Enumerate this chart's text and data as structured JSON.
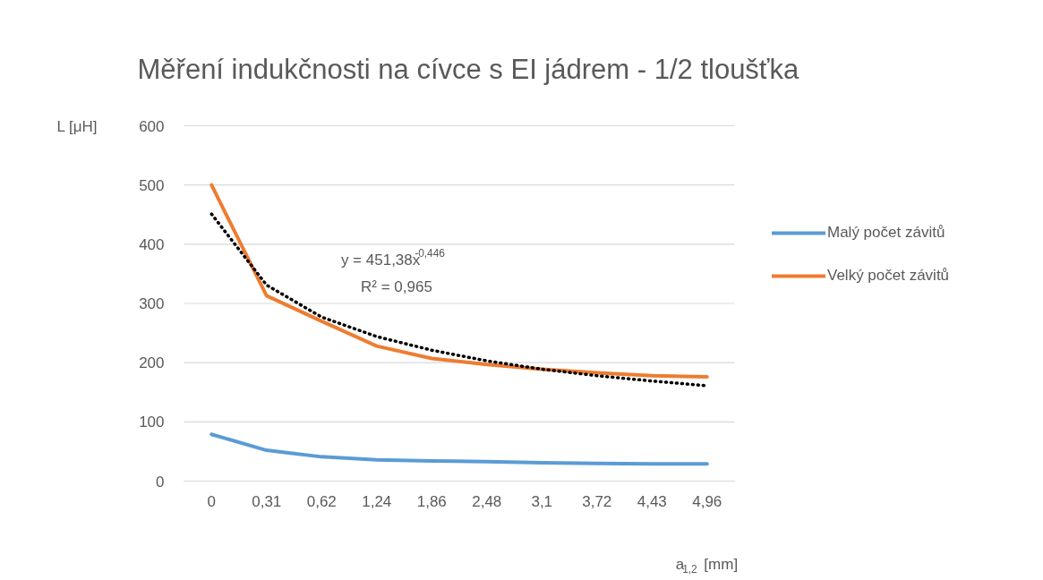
{
  "chart_data": {
    "type": "line",
    "title": "Měření indukčnosti na cívce s EI jádrem - 1/2 tloušťka",
    "xlabel": "a$_{1,2}$ [mm]",
    "ylabel": "L [μH]",
    "categories": [
      "0",
      "0,31",
      "0,62",
      "1,24",
      "1,86",
      "2,48",
      "3,1",
      "3,72",
      "4,43",
      "4,96"
    ],
    "series": [
      {
        "name": "Malý počet závitů",
        "color": "#5b9bd5",
        "values": [
          79,
          52,
          41,
          36,
          34,
          33,
          31,
          30,
          29,
          29
        ]
      },
      {
        "name": "Velký počet závitů",
        "color": "#ed7d31",
        "values": [
          500,
          313,
          270,
          228,
          207,
          197,
          189,
          183,
          178,
          176
        ]
      },
      {
        "color": "#000000",
        "line_style": "dotted",
        "values": [
          451,
          331,
          277,
          244,
          221,
          203,
          189,
          178,
          169,
          161
        ]
      }
    ],
    "annotations": [
      "y = 451,38x$^{-0,446}$",
      "R² = 0,965"
    ],
    "ylim": [
      0,
      600
    ],
    "yticks": [
      0,
      100,
      200,
      300,
      400,
      500,
      600
    ],
    "grid": "y",
    "legend": "right"
  }
}
